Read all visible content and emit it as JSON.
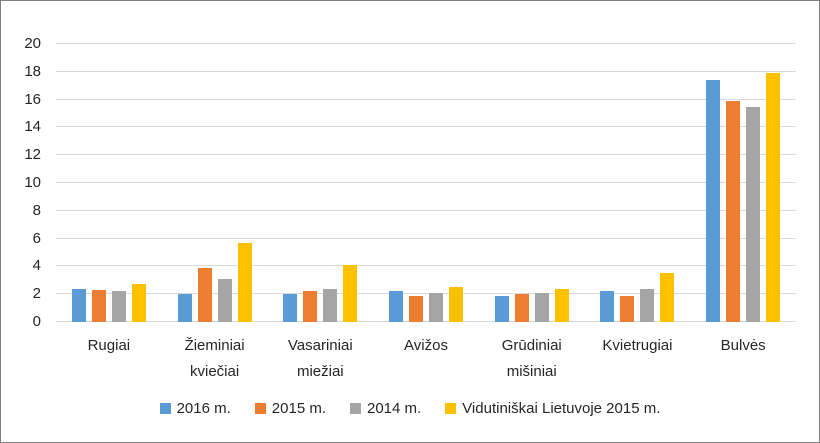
{
  "chart_data": {
    "type": "bar",
    "title": "",
    "xlabel": "",
    "ylabel": "",
    "categories": [
      "Rugiai",
      "Žieminiai kviečiai",
      "Vasariniai miežiai",
      "Avižos",
      "Grūdiniai mišiniai",
      "Kvietrugiai",
      "Bulvės"
    ],
    "series": [
      {
        "name": "2016 m.",
        "color": "#5B9BD5",
        "values": [
          2.4,
          2.0,
          2.0,
          2.2,
          1.9,
          2.2,
          17.4
        ]
      },
      {
        "name": "2015 m.",
        "color": "#ED7D31",
        "values": [
          2.3,
          3.9,
          2.2,
          1.9,
          2.0,
          1.9,
          15.9
        ]
      },
      {
        "name": "2014 m.",
        "color": "#A5A5A5",
        "values": [
          2.2,
          3.1,
          2.4,
          2.1,
          2.1,
          2.4,
          15.5
        ]
      },
      {
        "name": "Vidutiniškai Lietuvoje 2015 m.",
        "color": "#FFC000",
        "values": [
          2.7,
          5.7,
          4.1,
          2.5,
          2.4,
          3.5,
          17.9
        ]
      }
    ],
    "ylim": [
      0,
      20
    ],
    "ytick_step": 2,
    "grid": true,
    "legend_position": "bottom",
    "colors": {
      "gridline": "#D9D9D9",
      "text": "#262626",
      "background": "#FFFFFF",
      "frame_border": "#7F7F7F"
    }
  }
}
